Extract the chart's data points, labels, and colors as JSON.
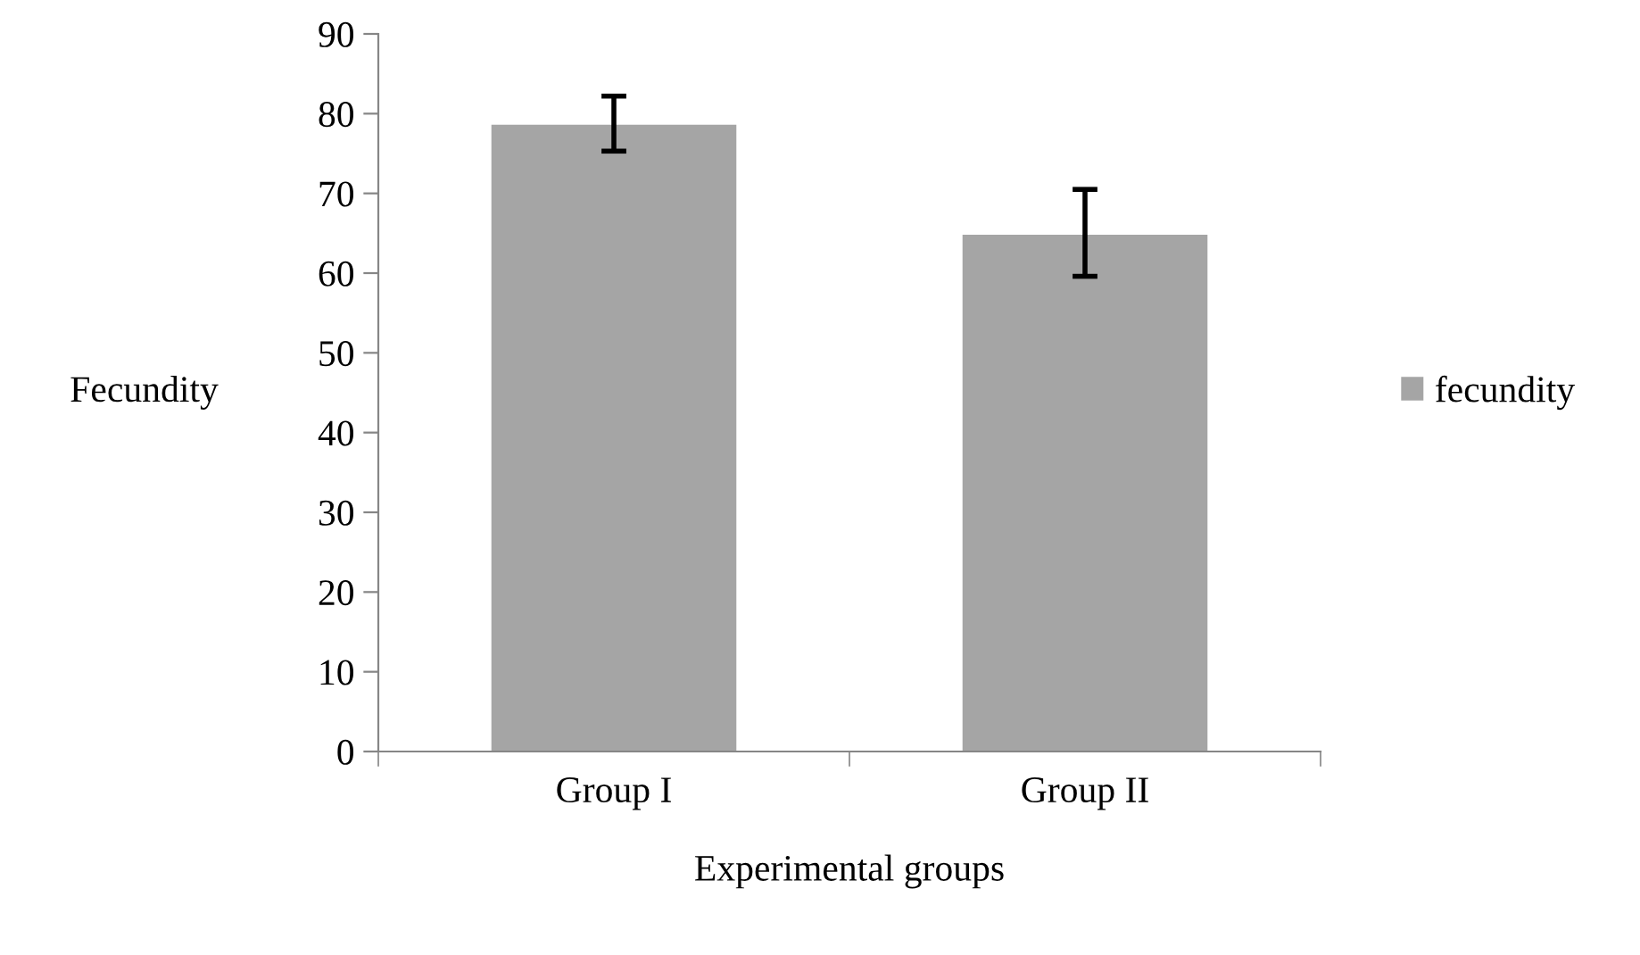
{
  "chart_data": {
    "type": "bar",
    "xlabel": "Experimental groups",
    "ylabel": "Fecundity",
    "categories": [
      "Group I",
      "Group II"
    ],
    "series": [
      {
        "name": "fecundity",
        "color": "#a5a5a5",
        "values": [
          78.6,
          64.8
        ],
        "errors": [
          [
            75.3,
            82.2
          ],
          [
            59.6,
            70.5
          ]
        ]
      }
    ],
    "ylim": [
      0,
      90
    ],
    "yticks": [
      0,
      10,
      20,
      30,
      40,
      50,
      60,
      70,
      80,
      90
    ],
    "grid": false,
    "legend": "right"
  }
}
